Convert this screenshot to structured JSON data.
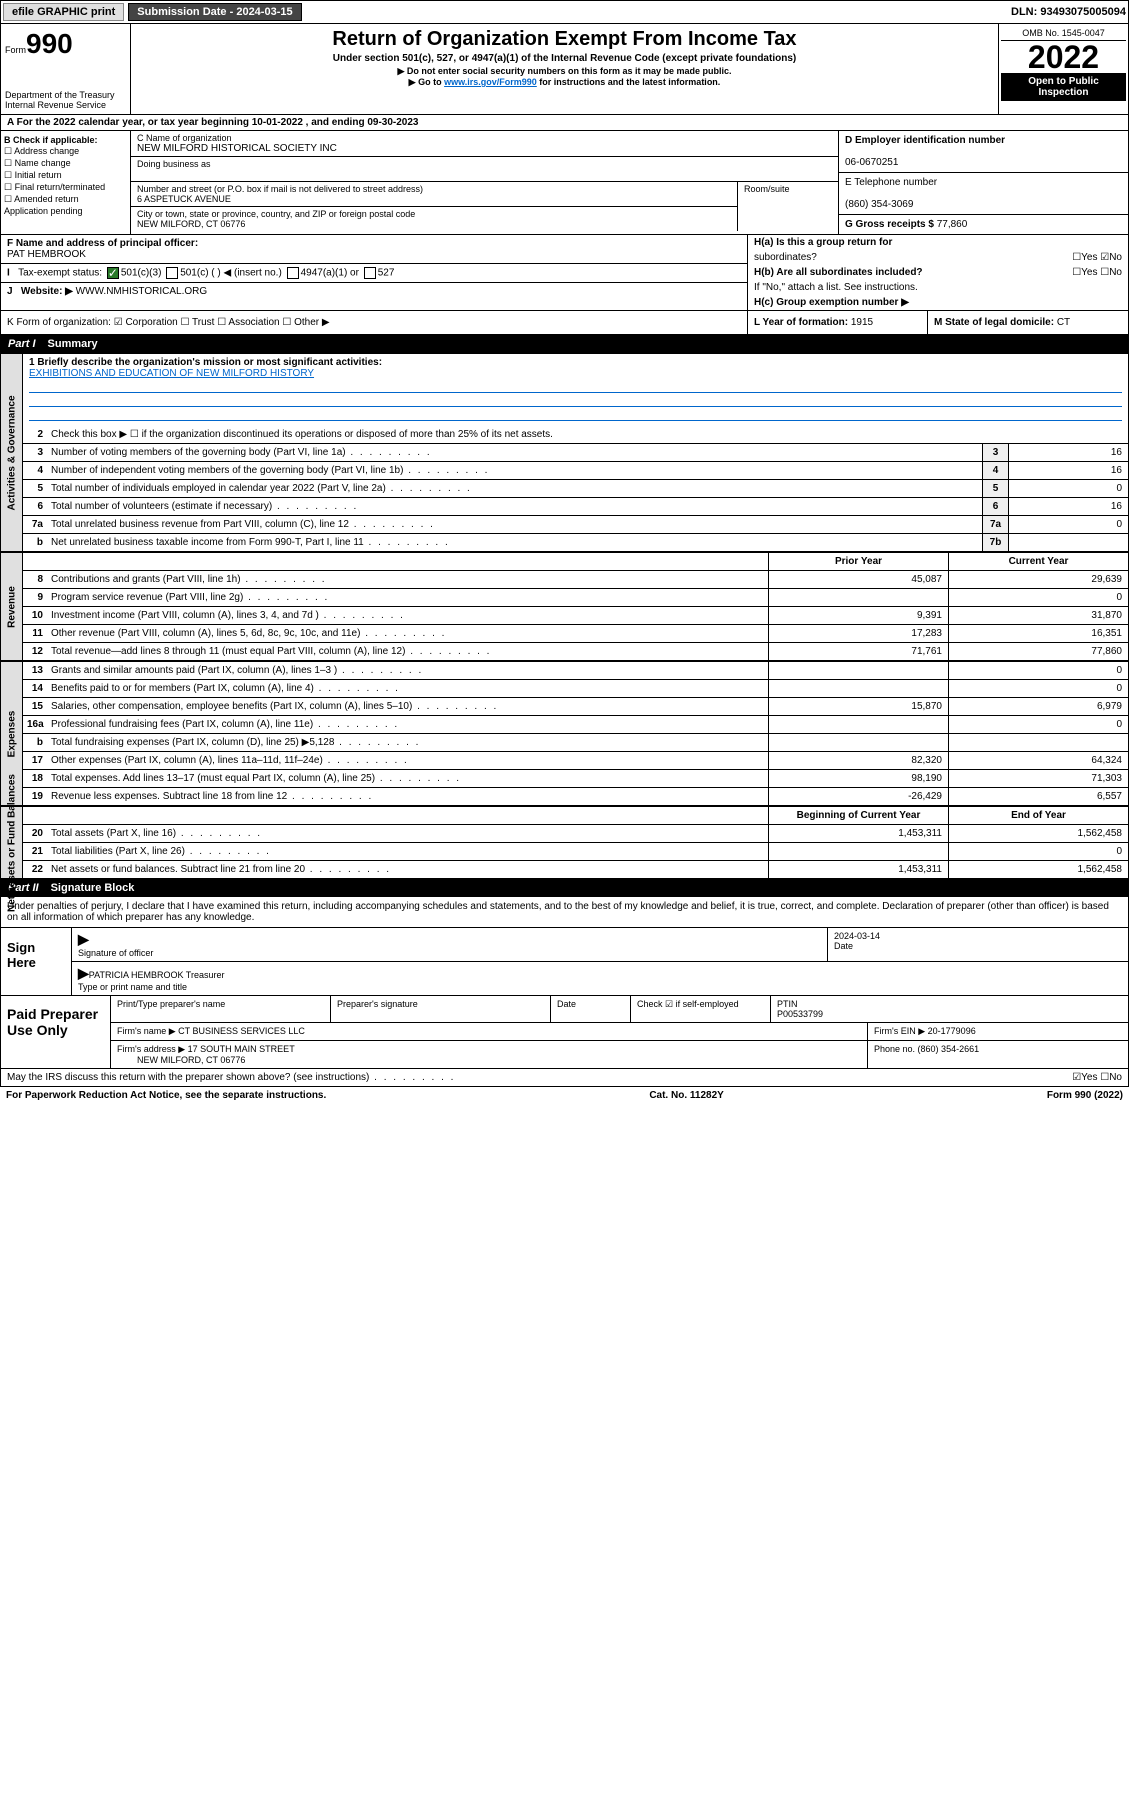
{
  "topbar": {
    "efile": "efile GRAPHIC print",
    "subdate_lbl": "Submission Date - ",
    "subdate": "2024-03-15",
    "dln_lbl": "DLN: ",
    "dln": "93493075005094"
  },
  "header": {
    "form_lbl": "Form",
    "form_num": "990",
    "dept": "Department of the Treasury",
    "irs": "Internal Revenue Service",
    "title": "Return of Organization Exempt From Income Tax",
    "sub1": "Under section 501(c), 527, or 4947(a)(1) of the Internal Revenue Code (except private foundations)",
    "sub2": "▶ Do not enter social security numbers on this form as it may be made public.",
    "sub3_a": "▶ Go to ",
    "sub3_link": "www.irs.gov/Form990",
    "sub3_b": " for instructions and the latest information.",
    "omb": "OMB No. 1545-0047",
    "year": "2022",
    "inspect1": "Open to Public",
    "inspect2": "Inspection"
  },
  "rowA": {
    "a": "A For the 2022 calendar year, or tax year beginning ",
    "beg": "10-01-2022",
    "mid": " , and ending ",
    "end": "09-30-2023"
  },
  "colB": {
    "hdr": "B Check if applicable:",
    "items": [
      "☐ Address change",
      "☐ Name change",
      "☐ Initial return",
      "☐ Final return/terminated",
      "☐ Amended return",
      "  Application pending"
    ]
  },
  "colC": {
    "name_lbl": "C Name of organization",
    "name": "NEW MILFORD HISTORICAL SOCIETY INC",
    "dba_lbl": "Doing business as",
    "dba": "",
    "street_lbl": "Number and street (or P.O. box if mail is not delivered to street address)",
    "street": "6 ASPETUCK AVENUE",
    "room_lbl": "Room/suite",
    "city_lbl": "City or town, state or province, country, and ZIP or foreign postal code",
    "city": "NEW MILFORD, CT  06776"
  },
  "colDE": {
    "d_lbl": "D Employer identification number",
    "d": "06-0670251",
    "e_lbl": "E Telephone number",
    "e": "(860) 354-3069",
    "g_lbl": "G Gross receipts $ ",
    "g": "77,860"
  },
  "fgh": {
    "f_lbl": "F Name and address of principal officer:",
    "f": "PAT HEMBROOK",
    "i_lbl": "Tax-exempt status:",
    "i_501c3": "501(c)(3)",
    "i_501c": "501(c) (  ) ◀ (insert no.)",
    "i_4947": "4947(a)(1) or",
    "i_527": "527",
    "j_lbl": "Website: ▶",
    "j": "WWW.NMHISTORICAL.ORG",
    "ha": "H(a)  Is this a group return for",
    "ha2": "subordinates?",
    "ha_yn": "☐Yes ☑No",
    "hb": "H(b)  Are all subordinates included?",
    "hb_yn": "☐Yes ☐No",
    "hb_note": "If \"No,\" attach a list. See instructions.",
    "hc": "H(c)  Group exemption number ▶"
  },
  "klm": {
    "k": "K Form of organization: ☑ Corporation ☐ Trust ☐ Association ☐ Other ▶",
    "l_lbl": "L Year of formation: ",
    "l": "1915",
    "m_lbl": "M State of legal domicile: ",
    "m": "CT"
  },
  "part1": {
    "hdr": "Part I",
    "title": "Summary"
  },
  "mission": {
    "q": "1  Briefly describe the organization's mission or most significant activities:",
    "a": "EXHIBITIONS AND EDUCATION OF NEW MILFORD HISTORY"
  },
  "gov": {
    "l2": "Check this box ▶ ☐  if the organization discontinued its operations or disposed of more than 25% of its net assets.",
    "rows": [
      {
        "n": "3",
        "t": "Number of voting members of the governing body (Part VI, line 1a)",
        "b": "3",
        "v": "16"
      },
      {
        "n": "4",
        "t": "Number of independent voting members of the governing body (Part VI, line 1b)",
        "b": "4",
        "v": "16"
      },
      {
        "n": "5",
        "t": "Total number of individuals employed in calendar year 2022 (Part V, line 2a)",
        "b": "5",
        "v": "0"
      },
      {
        "n": "6",
        "t": "Total number of volunteers (estimate if necessary)",
        "b": "6",
        "v": "16"
      },
      {
        "n": "7a",
        "t": "Total unrelated business revenue from Part VIII, column (C), line 12",
        "b": "7a",
        "v": "0"
      },
      {
        "n": "b",
        "t": "Net unrelated business taxable income from Form 990-T, Part I, line 11",
        "b": "7b",
        "v": ""
      }
    ]
  },
  "rev": {
    "hdr_py": "Prior Year",
    "hdr_cy": "Current Year",
    "rows": [
      {
        "n": "8",
        "t": "Contributions and grants (Part VIII, line 1h)",
        "py": "45,087",
        "cy": "29,639"
      },
      {
        "n": "9",
        "t": "Program service revenue (Part VIII, line 2g)",
        "py": "",
        "cy": "0"
      },
      {
        "n": "10",
        "t": "Investment income (Part VIII, column (A), lines 3, 4, and 7d )",
        "py": "9,391",
        "cy": "31,870"
      },
      {
        "n": "11",
        "t": "Other revenue (Part VIII, column (A), lines 5, 6d, 8c, 9c, 10c, and 11e)",
        "py": "17,283",
        "cy": "16,351"
      },
      {
        "n": "12",
        "t": "Total revenue—add lines 8 through 11 (must equal Part VIII, column (A), line 12)",
        "py": "71,761",
        "cy": "77,860"
      }
    ]
  },
  "exp": {
    "rows": [
      {
        "n": "13",
        "t": "Grants and similar amounts paid (Part IX, column (A), lines 1–3 )",
        "py": "",
        "cy": "0"
      },
      {
        "n": "14",
        "t": "Benefits paid to or for members (Part IX, column (A), line 4)",
        "py": "",
        "cy": "0"
      },
      {
        "n": "15",
        "t": "Salaries, other compensation, employee benefits (Part IX, column (A), lines 5–10)",
        "py": "15,870",
        "cy": "6,979"
      },
      {
        "n": "16a",
        "t": "Professional fundraising fees (Part IX, column (A), line 11e)",
        "py": "",
        "cy": "0"
      },
      {
        "n": "b",
        "t": "Total fundraising expenses (Part IX, column (D), line 25) ▶5,128",
        "py": "",
        "cy": ""
      },
      {
        "n": "17",
        "t": "Other expenses (Part IX, column (A), lines 11a–11d, 11f–24e)",
        "py": "82,320",
        "cy": "64,324"
      },
      {
        "n": "18",
        "t": "Total expenses. Add lines 13–17 (must equal Part IX, column (A), line 25)",
        "py": "98,190",
        "cy": "71,303"
      },
      {
        "n": "19",
        "t": "Revenue less expenses. Subtract line 18 from line 12",
        "py": "-26,429",
        "cy": "6,557"
      }
    ]
  },
  "na": {
    "hdr_by": "Beginning of Current Year",
    "hdr_ey": "End of Year",
    "rows": [
      {
        "n": "20",
        "t": "Total assets (Part X, line 16)",
        "py": "1,453,311",
        "cy": "1,562,458"
      },
      {
        "n": "21",
        "t": "Total liabilities (Part X, line 26)",
        "py": "",
        "cy": "0"
      },
      {
        "n": "22",
        "t": "Net assets or fund balances. Subtract line 21 from line 20",
        "py": "1,453,311",
        "cy": "1,562,458"
      }
    ]
  },
  "part2": {
    "hdr": "Part II",
    "title": "Signature Block"
  },
  "sig": {
    "note": "Under penalties of perjury, I declare that I have examined this return, including accompanying schedules and statements, and to the best of my knowledge and belief, it is true, correct, and complete. Declaration of preparer (other than officer) is based on all information of which preparer has any knowledge.",
    "here": "Sign Here",
    "sig_lbl": "Signature of officer",
    "date_lbl": "Date",
    "date": "2024-03-14",
    "name": "PATRICIA HEMBROOK  Treasurer",
    "name_lbl": "Type or print name and title",
    "paid": "Paid Preparer Use Only",
    "p_name_lbl": "Print/Type preparer's name",
    "p_sig_lbl": "Preparer's signature",
    "p_date_lbl": "Date",
    "p_chk": "Check ☑ if self-employed",
    "ptin_lbl": "PTIN",
    "ptin": "P00533799",
    "firm_lbl": "Firm's name   ▶",
    "firm": "CT BUSINESS SERVICES LLC",
    "ein_lbl": "Firm's EIN ▶",
    "ein": "20-1779096",
    "addr_lbl": "Firm's address ▶",
    "addr1": "17 SOUTH MAIN STREET",
    "addr2": "NEW MILFORD, CT  06776",
    "phone_lbl": "Phone no. ",
    "phone": "(860) 354-2661"
  },
  "foot": {
    "q": "May the IRS discuss this return with the preparer shown above? (see instructions)",
    "yn": "☑Yes  ☐No",
    "pra": "For Paperwork Reduction Act Notice, see the separate instructions.",
    "cat": "Cat. No. 11282Y",
    "form": "Form 990 (2022)"
  }
}
